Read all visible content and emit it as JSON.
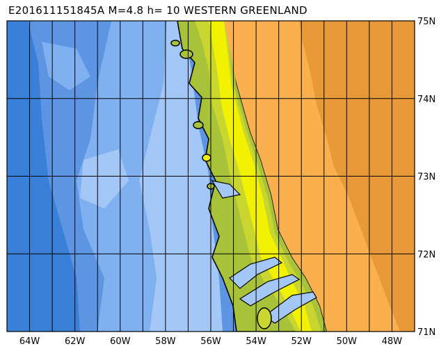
{
  "title": "E201611151845A M=4.8 h= 10 WESTERN GREENLAND",
  "map": {
    "lon_range": [
      -65,
      -47
    ],
    "lat_range": [
      71,
      75
    ],
    "lon_ticks": [
      {
        "value": -64,
        "label": "64W"
      },
      {
        "value": -62,
        "label": "62W"
      },
      {
        "value": -60,
        "label": "60W"
      },
      {
        "value": -58,
        "label": "58W"
      },
      {
        "value": -56,
        "label": "56W"
      },
      {
        "value": -54,
        "label": "54W"
      },
      {
        "value": -52,
        "label": "52W"
      },
      {
        "value": -50,
        "label": "50W"
      },
      {
        "value": -48,
        "label": "48W"
      }
    ],
    "lat_ticks": [
      {
        "value": 75,
        "label": "75N"
      },
      {
        "value": 74,
        "label": "74N"
      },
      {
        "value": 73,
        "label": "73N"
      },
      {
        "value": 72,
        "label": "72N"
      },
      {
        "value": 71,
        "label": "71N"
      }
    ],
    "grid_lon_step_deg": 1,
    "grid_lat_step_deg": 1,
    "colors": {
      "deep_ocean": "#3a7fd8",
      "mid_ocean": "#5d95e3",
      "shallow_ocean": "#7fb0ef",
      "shelf": "#a3c8f7",
      "lowland": "#a8c23a",
      "low_hills": "#c9d630",
      "hills": "#f2f200",
      "ice_low": "#fbb050",
      "ice_high": "#e89a38",
      "coastline": "#000000",
      "grid": "#000000"
    }
  }
}
